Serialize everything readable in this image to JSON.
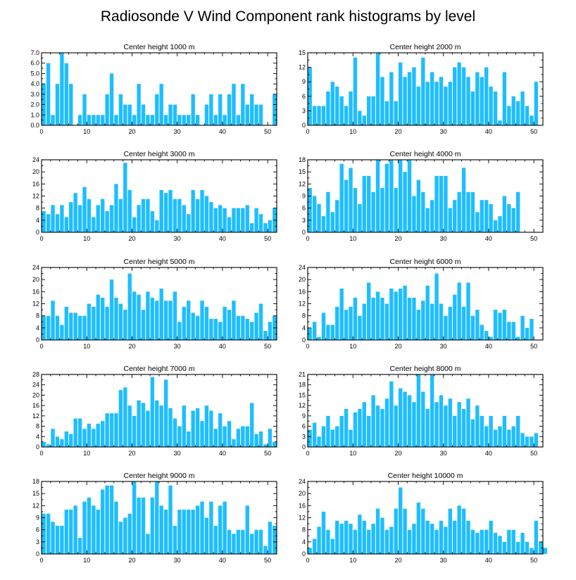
{
  "figure_title": "Radiosonde V Wind Component rank histograms by level",
  "bar_color": "#1ebeff",
  "chart_data": [
    {
      "type": "bar",
      "title": "Center height 1000 m",
      "ylim": [
        0,
        7
      ],
      "yticks": [
        "0.0",
        "1.0",
        "2.0",
        "3.0",
        "4.0",
        "5.0",
        "6.0",
        "7.0"
      ],
      "xticks": [
        "0",
        "10",
        "20",
        "30",
        "40",
        "50"
      ],
      "values": [
        4,
        6,
        1,
        4,
        7,
        6,
        4,
        0,
        1,
        3,
        1,
        1,
        1,
        1,
        3,
        5,
        1,
        3,
        2,
        2,
        1,
        4,
        2,
        1,
        1,
        3,
        4,
        1,
        2,
        2,
        1,
        1,
        1,
        3,
        1,
        0,
        2,
        3,
        1,
        3,
        1,
        3,
        4,
        1,
        4,
        2,
        3,
        2,
        2,
        0,
        0,
        3
      ]
    },
    {
      "type": "bar",
      "title": "Center height 2000 m",
      "ylim": [
        0,
        15
      ],
      "yticks": [
        "0",
        "3",
        "6",
        "9",
        "12",
        "15"
      ],
      "xticks": [
        "0",
        "10",
        "20",
        "30",
        "40",
        "50"
      ],
      "values": [
        12,
        4,
        4,
        4,
        7,
        9,
        8,
        6,
        4,
        7,
        14,
        3,
        2,
        6,
        6,
        15,
        10,
        5,
        11,
        5,
        13,
        10,
        11,
        12,
        8,
        14,
        9,
        11,
        9,
        10,
        8,
        9,
        12,
        13,
        12,
        10,
        7,
        11,
        10,
        12,
        8,
        7,
        1,
        11,
        4,
        6,
        5,
        7,
        4,
        2,
        9
      ]
    },
    {
      "type": "bar",
      "title": "Center height 3000 m",
      "ylim": [
        0,
        24
      ],
      "yticks": [
        "0",
        "4",
        "8",
        "12",
        "16",
        "20",
        "24"
      ],
      "xticks": [
        "0",
        "10",
        "20",
        "30",
        "40",
        "50"
      ],
      "values": [
        7,
        6,
        9,
        6,
        9,
        5,
        10,
        13,
        9,
        15,
        11,
        5,
        9,
        11,
        7,
        9,
        16,
        11,
        23,
        14,
        5,
        9,
        11,
        11,
        7,
        4,
        14,
        13,
        14,
        11,
        11,
        9,
        6,
        14,
        11,
        14,
        12,
        10,
        8,
        9,
        8,
        5,
        8,
        8,
        8,
        9,
        3,
        8,
        6,
        3,
        4,
        8
      ]
    },
    {
      "type": "bar",
      "title": "Center height 4000 m",
      "ylim": [
        0,
        18
      ],
      "yticks": [
        "0",
        "3",
        "6",
        "9",
        "12",
        "15",
        "18"
      ],
      "xticks": [
        "0",
        "10",
        "20",
        "30",
        "40",
        "50"
      ],
      "values": [
        11,
        9,
        7,
        4,
        10,
        5,
        8,
        17,
        13,
        16,
        11,
        7,
        14,
        14,
        10,
        18,
        11,
        17,
        18,
        11,
        18,
        15,
        18,
        9,
        13,
        10,
        6,
        8,
        14,
        14,
        14,
        6,
        8,
        10,
        16,
        10,
        10,
        5,
        8,
        8,
        7,
        3,
        4,
        9,
        7,
        6,
        10
      ]
    },
    {
      "type": "bar",
      "title": "Center height 5000 m",
      "ylim": [
        0,
        24
      ],
      "yticks": [
        "0",
        "4",
        "8",
        "12",
        "16",
        "20",
        "24"
      ],
      "xticks": [
        "0",
        "10",
        "20",
        "30",
        "40",
        "50"
      ],
      "values": [
        8,
        8,
        13,
        8,
        5,
        11,
        9,
        9,
        8,
        8,
        12,
        11,
        15,
        14,
        11,
        20,
        14,
        12,
        10,
        22,
        16,
        15,
        10,
        16,
        14,
        13,
        17,
        13,
        13,
        16,
        6,
        11,
        13,
        9,
        8,
        13,
        11,
        7,
        7,
        6,
        11,
        10,
        13,
        8,
        8,
        7,
        6,
        9,
        12,
        3,
        6,
        8
      ]
    },
    {
      "type": "bar",
      "title": "Center height 6000 m",
      "ylim": [
        0,
        24
      ],
      "yticks": [
        "0",
        "4",
        "8",
        "12",
        "16",
        "20",
        "24"
      ],
      "xticks": [
        "0",
        "10",
        "20",
        "30",
        "40",
        "50"
      ],
      "values": [
        4,
        6,
        1,
        9,
        5,
        5,
        11,
        17,
        10,
        11,
        14,
        8,
        12,
        19,
        14,
        16,
        14,
        12,
        17,
        16,
        17,
        18,
        14,
        14,
        10,
        13,
        18,
        12,
        22,
        12,
        8,
        11,
        15,
        19,
        11,
        19,
        8,
        10,
        5,
        3,
        1,
        10,
        9,
        10,
        6,
        6,
        1,
        8,
        4,
        7
      ]
    },
    {
      "type": "bar",
      "title": "Center height 7000 m",
      "ylim": [
        0,
        28
      ],
      "yticks": [
        "0",
        "4",
        "8",
        "12",
        "16",
        "20",
        "24",
        "28"
      ],
      "xticks": [
        "0",
        "10",
        "20",
        "30",
        "40",
        "50"
      ],
      "values": [
        2,
        1,
        7,
        4,
        3,
        6,
        5,
        11,
        11,
        7,
        9,
        7,
        9,
        10,
        13,
        13,
        13,
        22,
        23,
        16,
        12,
        18,
        17,
        14,
        27,
        18,
        16,
        26,
        15,
        11,
        8,
        16,
        6,
        14,
        15,
        10,
        16,
        14,
        7,
        13,
        8,
        10,
        3,
        7,
        8,
        8,
        17,
        5,
        6,
        1,
        7,
        2
      ]
    },
    {
      "type": "bar",
      "title": "Center height 8000 m",
      "ylim": [
        0,
        21
      ],
      "yticks": [
        "0",
        "3",
        "6",
        "9",
        "12",
        "15",
        "18",
        "21"
      ],
      "xticks": [
        "0",
        "10",
        "20",
        "30",
        "40",
        "50"
      ],
      "values": [
        5,
        7,
        3,
        6,
        9,
        5,
        6,
        9,
        11,
        5,
        10,
        11,
        13,
        9,
        15,
        12,
        11,
        14,
        19,
        12,
        17,
        16,
        15,
        13,
        21,
        16,
        11,
        21,
        13,
        15,
        12,
        14,
        9,
        13,
        11,
        14,
        8,
        12,
        9,
        6,
        9,
        5,
        6,
        9,
        5,
        6,
        9,
        4,
        3,
        3,
        4
      ]
    },
    {
      "type": "bar",
      "title": "Center height 9000 m",
      "ylim": [
        0,
        18
      ],
      "yticks": [
        "0",
        "3",
        "6",
        "9",
        "12",
        "15",
        "18"
      ],
      "xticks": [
        "0",
        "10",
        "20",
        "30",
        "40",
        "50"
      ],
      "values": [
        10,
        10,
        8,
        7,
        7,
        11,
        11,
        12,
        4,
        13,
        14,
        12,
        11,
        16,
        17,
        17,
        13,
        8,
        9,
        10,
        18,
        14,
        14,
        5,
        14,
        18,
        12,
        11,
        17,
        7,
        11,
        11,
        11,
        11,
        12,
        13,
        9,
        13,
        7,
        12,
        13,
        6,
        5,
        6,
        6,
        12,
        5,
        6,
        6,
        2,
        8,
        7
      ]
    },
    {
      "type": "bar",
      "title": "Center height 10000 m",
      "ylim": [
        0,
        24
      ],
      "yticks": [
        "0",
        "4",
        "8",
        "12",
        "16",
        "20",
        "24"
      ],
      "xticks": [
        "0",
        "10",
        "20",
        "30",
        "40",
        "50"
      ],
      "values": [
        2,
        5,
        9,
        14,
        8,
        5,
        11,
        10,
        11,
        10,
        8,
        13,
        11,
        8,
        10,
        15,
        12,
        8,
        9,
        15,
        22,
        15,
        8,
        10,
        17,
        15,
        11,
        10,
        8,
        11,
        9,
        15,
        11,
        16,
        15,
        11,
        8,
        7,
        8,
        8,
        11,
        7,
        6,
        4,
        8,
        8,
        4,
        7,
        4,
        2,
        11,
        4,
        2
      ]
    }
  ]
}
